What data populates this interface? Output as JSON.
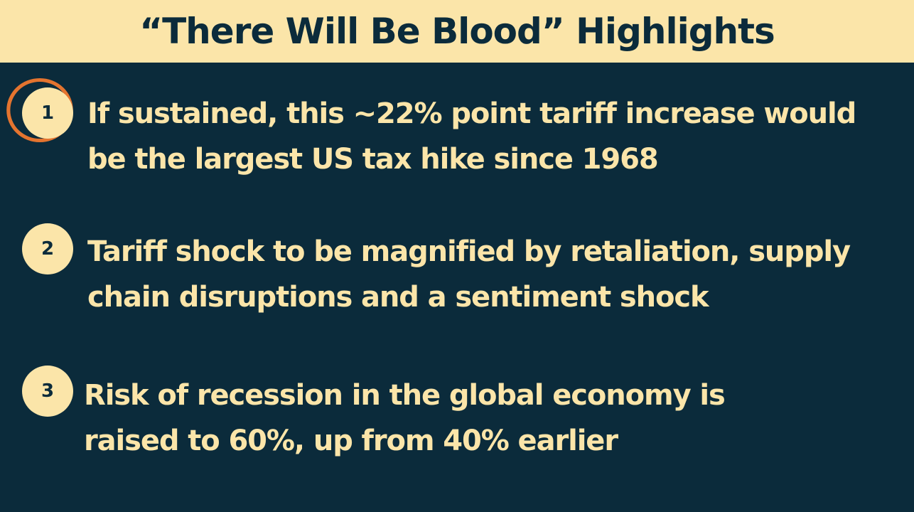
{
  "slide": {
    "title": "“There Will Be Blood” Highlights",
    "colors": {
      "background": "#0b2b3b",
      "title_bar": "#fbe5a9",
      "text": "#fbe5a9",
      "highlight_ring": "#e4742f"
    },
    "points": [
      {
        "number": "1",
        "highlighted": true,
        "lines": [
          "If sustained, this ~22% point tariff increase would",
          "be the largest US tax hike since 1968"
        ]
      },
      {
        "number": "2",
        "highlighted": false,
        "lines": [
          "Tariff shock to be magnified by retaliation, supply",
          "chain disruptions and a sentiment shock"
        ]
      },
      {
        "number": "3",
        "highlighted": false,
        "lines": [
          "Risk of recession in the global economy is",
          "raised to 60%, up from 40% earlier"
        ]
      }
    ]
  }
}
